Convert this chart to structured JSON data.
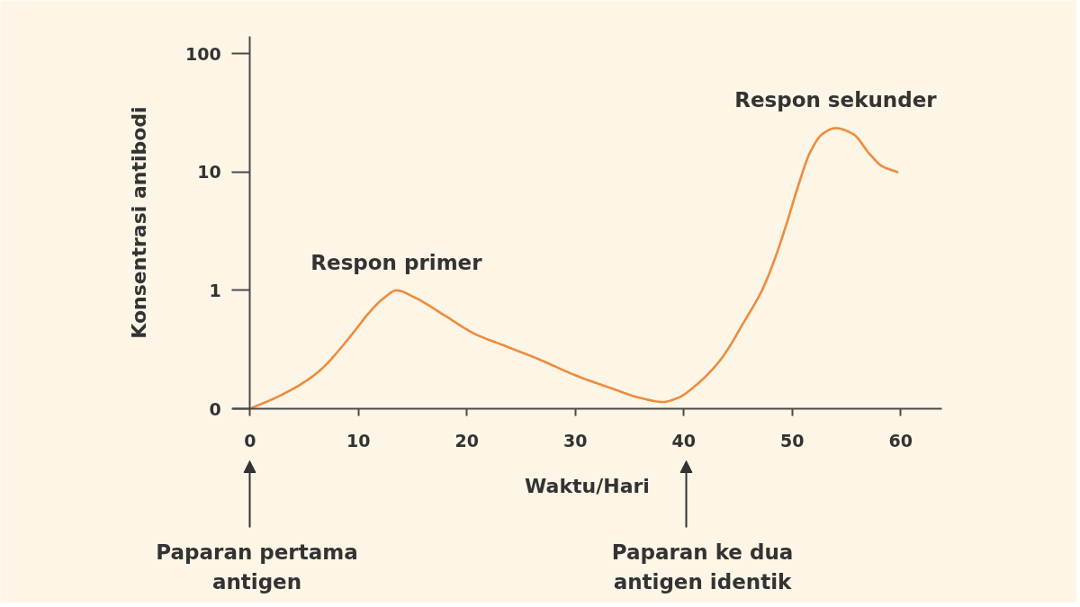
{
  "chart_data": {
    "type": "line",
    "xlabel": "Waktu/Hari",
    "ylabel": "Konsentrasi antibodi",
    "x": [
      0,
      2.7,
      5.5,
      6.9,
      8.3,
      9.7,
      11.0,
      12.4,
      13.5,
      15.2,
      18.0,
      20.7,
      23.5,
      26.5,
      30.1,
      33.4,
      35.9,
      38.1,
      39.5,
      41.2,
      43.4,
      45.6,
      47.3,
      48.4,
      49.5,
      50.6,
      51.7,
      52.8,
      54.0,
      55.6,
      57.2,
      58.3,
      59.7
    ],
    "series": [
      {
        "color": "#ef8b3c",
        "values": [
          0.1,
          0.128,
          0.18,
          0.23,
          0.32,
          0.46,
          0.65,
          0.87,
          1.0,
          0.87,
          0.61,
          0.43,
          0.34,
          0.265,
          0.19,
          0.148,
          0.124,
          0.114,
          0.124,
          0.16,
          0.26,
          0.55,
          1.04,
          1.85,
          3.7,
          7.9,
          15,
          21,
          23.5,
          21,
          14,
          11.2,
          10
        ]
      }
    ],
    "xlim": [
      -1.6,
      63.8
    ],
    "ylim": [
      0.1,
      140
    ],
    "xticks": [
      0,
      10,
      20,
      30,
      40,
      50,
      60
    ],
    "yticks": [
      {
        "value": 0.1,
        "label": "0"
      },
      1,
      10,
      100
    ],
    "log": true,
    "annotations": [
      {
        "text": "Respon primer",
        "x": 13.5,
        "y": 1.0
      },
      {
        "text": "Respon sekunder",
        "x": 54.0,
        "y": 23.5
      },
      "Paparan pertama\nantigen",
      "Paparan ke dua\nantigen identik"
    ]
  }
}
